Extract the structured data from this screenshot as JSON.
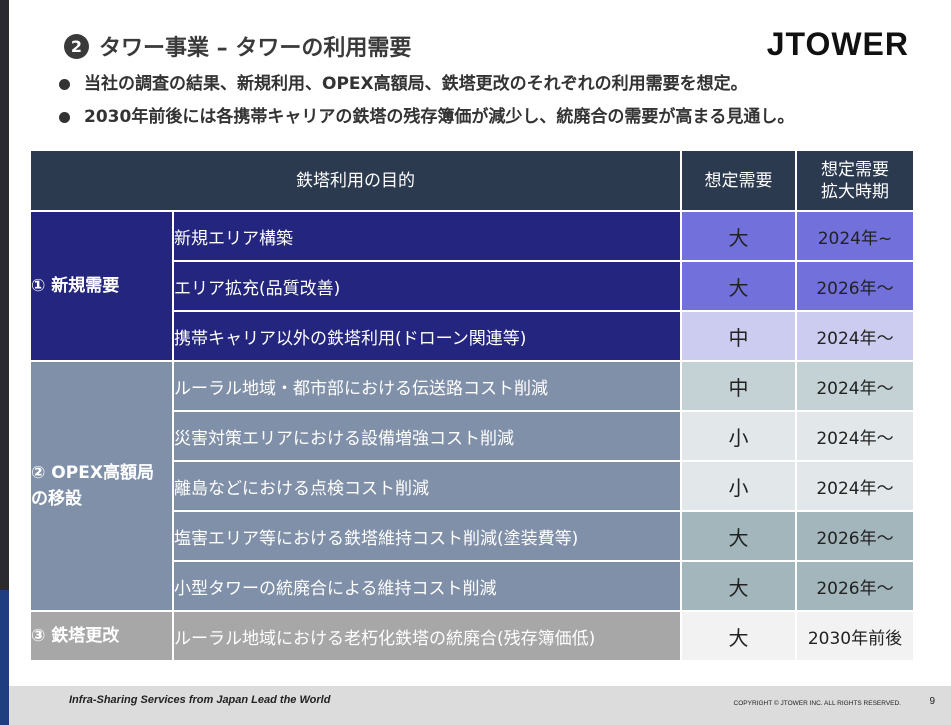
{
  "header": {
    "badge": "❷",
    "title": "タワー事業 – タワーの利用需要",
    "logo": "JTOWER"
  },
  "bullets": [
    "当社の調査の結果、新規利用、OPEX高額局、鉄塔更改のそれぞれの利用需要を想定。",
    "2030年前後には各携帯キャリアの鉄塔の残存簿価が減少し、統廃合の需要が高まる見通し。"
  ],
  "table": {
    "headers": {
      "purpose": "鉄塔利用の目的",
      "demand": "想定需要",
      "period": "想定需要\n拡大時期"
    },
    "groups": [
      {
        "category": "① 新規需要",
        "color": "#23257e",
        "rows": [
          {
            "purpose": "新規エリア構築",
            "demand": "大",
            "period": "2024年~",
            "demand_bg": "#7270da",
            "period_bg": "#7270da"
          },
          {
            "purpose": "エリア拡充(品質改善)",
            "demand": "大",
            "period": "2026年～",
            "demand_bg": "#7270da",
            "period_bg": "#7270da"
          },
          {
            "purpose": "携帯キャリア以外の鉄塔利用(ドローン関連等)",
            "demand": "中",
            "period": "2024年～",
            "demand_bg": "#ccccf1",
            "period_bg": "#ccccf1"
          }
        ]
      },
      {
        "category": "② OPEX高額局の移設",
        "color": "#8090a8",
        "rows": [
          {
            "purpose": "ルーラル地域・都市部における伝送路コスト削減",
            "demand": "中",
            "period": "2024年～",
            "demand_bg": "#c4d2d6",
            "period_bg": "#c4d2d6"
          },
          {
            "purpose": "災害対策エリアにおける設備増強コスト削減",
            "demand": "小",
            "period": "2024年～",
            "demand_bg": "#e2e8ea",
            "period_bg": "#e2e8ea"
          },
          {
            "purpose": "離島などにおける点検コスト削減",
            "demand": "小",
            "period": "2024年～",
            "demand_bg": "#e2e8ea",
            "period_bg": "#e2e8ea"
          },
          {
            "purpose": "塩害エリア等における鉄塔維持コスト削減(塗装費等)",
            "demand": "大",
            "period": "2026年～",
            "demand_bg": "#a2b6bc",
            "period_bg": "#a2b6bc"
          },
          {
            "purpose": "小型タワーの統廃合による維持コスト削減",
            "demand": "大",
            "period": "2026年～",
            "demand_bg": "#a2b6bc",
            "period_bg": "#a2b6bc"
          }
        ]
      },
      {
        "category": "③ 鉄塔更改",
        "color": "#a7a7a7",
        "rows": [
          {
            "purpose": "ルーラル地域における老朽化鉄塔の統廃合(残存簿価低)",
            "demand": "大",
            "period": "2030年前後",
            "demand_bg": "#f2f2f2",
            "period_bg": "#f2f2f2"
          }
        ]
      }
    ]
  },
  "footer": {
    "tagline": "Infra-Sharing Services from Japan Lead the World",
    "copyright": "COPYRIGHT © JTOWER INC. ALL RIGHTS RESERVED.",
    "page": "9"
  },
  "colors": {
    "header_bg": "#2c3a50",
    "group1": "#23257e",
    "group2": "#8090a8",
    "group3": "#a7a7a7"
  }
}
